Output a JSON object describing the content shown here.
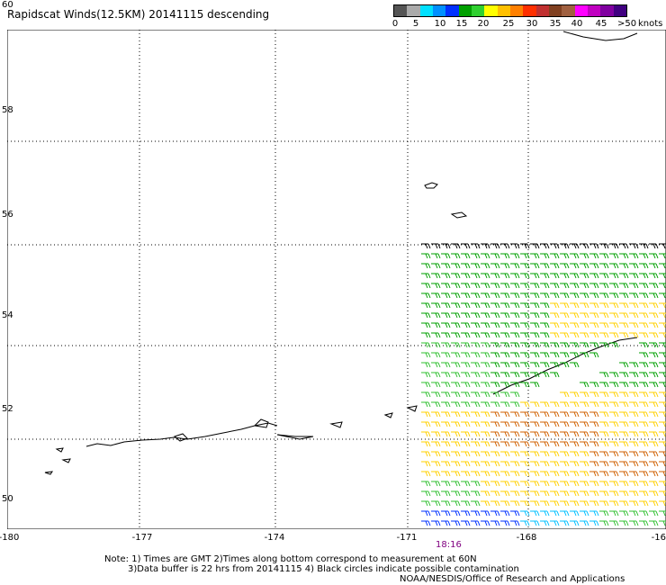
{
  "title": "Rapidscat Winds(12.5KM) 20141115 descending",
  "colorbar": {
    "colors": [
      "#555555",
      "#aaaaaa",
      "#00e0ff",
      "#0090ff",
      "#0030ff",
      "#00a000",
      "#30d030",
      "#ffff00",
      "#ffc000",
      "#ff8000",
      "#ff3000",
      "#c03030",
      "#804020",
      "#a06040",
      "#ff00ff",
      "#c000c0",
      "#8000a0",
      "#400080"
    ],
    "labels": [
      "0",
      "5",
      "10",
      "15",
      "20",
      "25",
      "30",
      "35",
      "40",
      "45",
      ">50"
    ],
    "unit": "knots"
  },
  "axes": {
    "lat_labels": [
      "60",
      "58",
      "56",
      "54",
      "52",
      "50"
    ],
    "lon_labels": [
      "-180",
      "-177",
      "-174",
      "-171",
      "-168",
      "-16"
    ]
  },
  "pass_time": "18:16",
  "notes": {
    "line1": "Note: 1) Times are GMT 2)Times along bottom correspond to measurement at 60N",
    "line2": "3)Data buffer is 22 hrs from 20141115 4) Black circles indicate possible contamination",
    "credit": "NOAA/NESDIS/Office of Research and Applications"
  }
}
